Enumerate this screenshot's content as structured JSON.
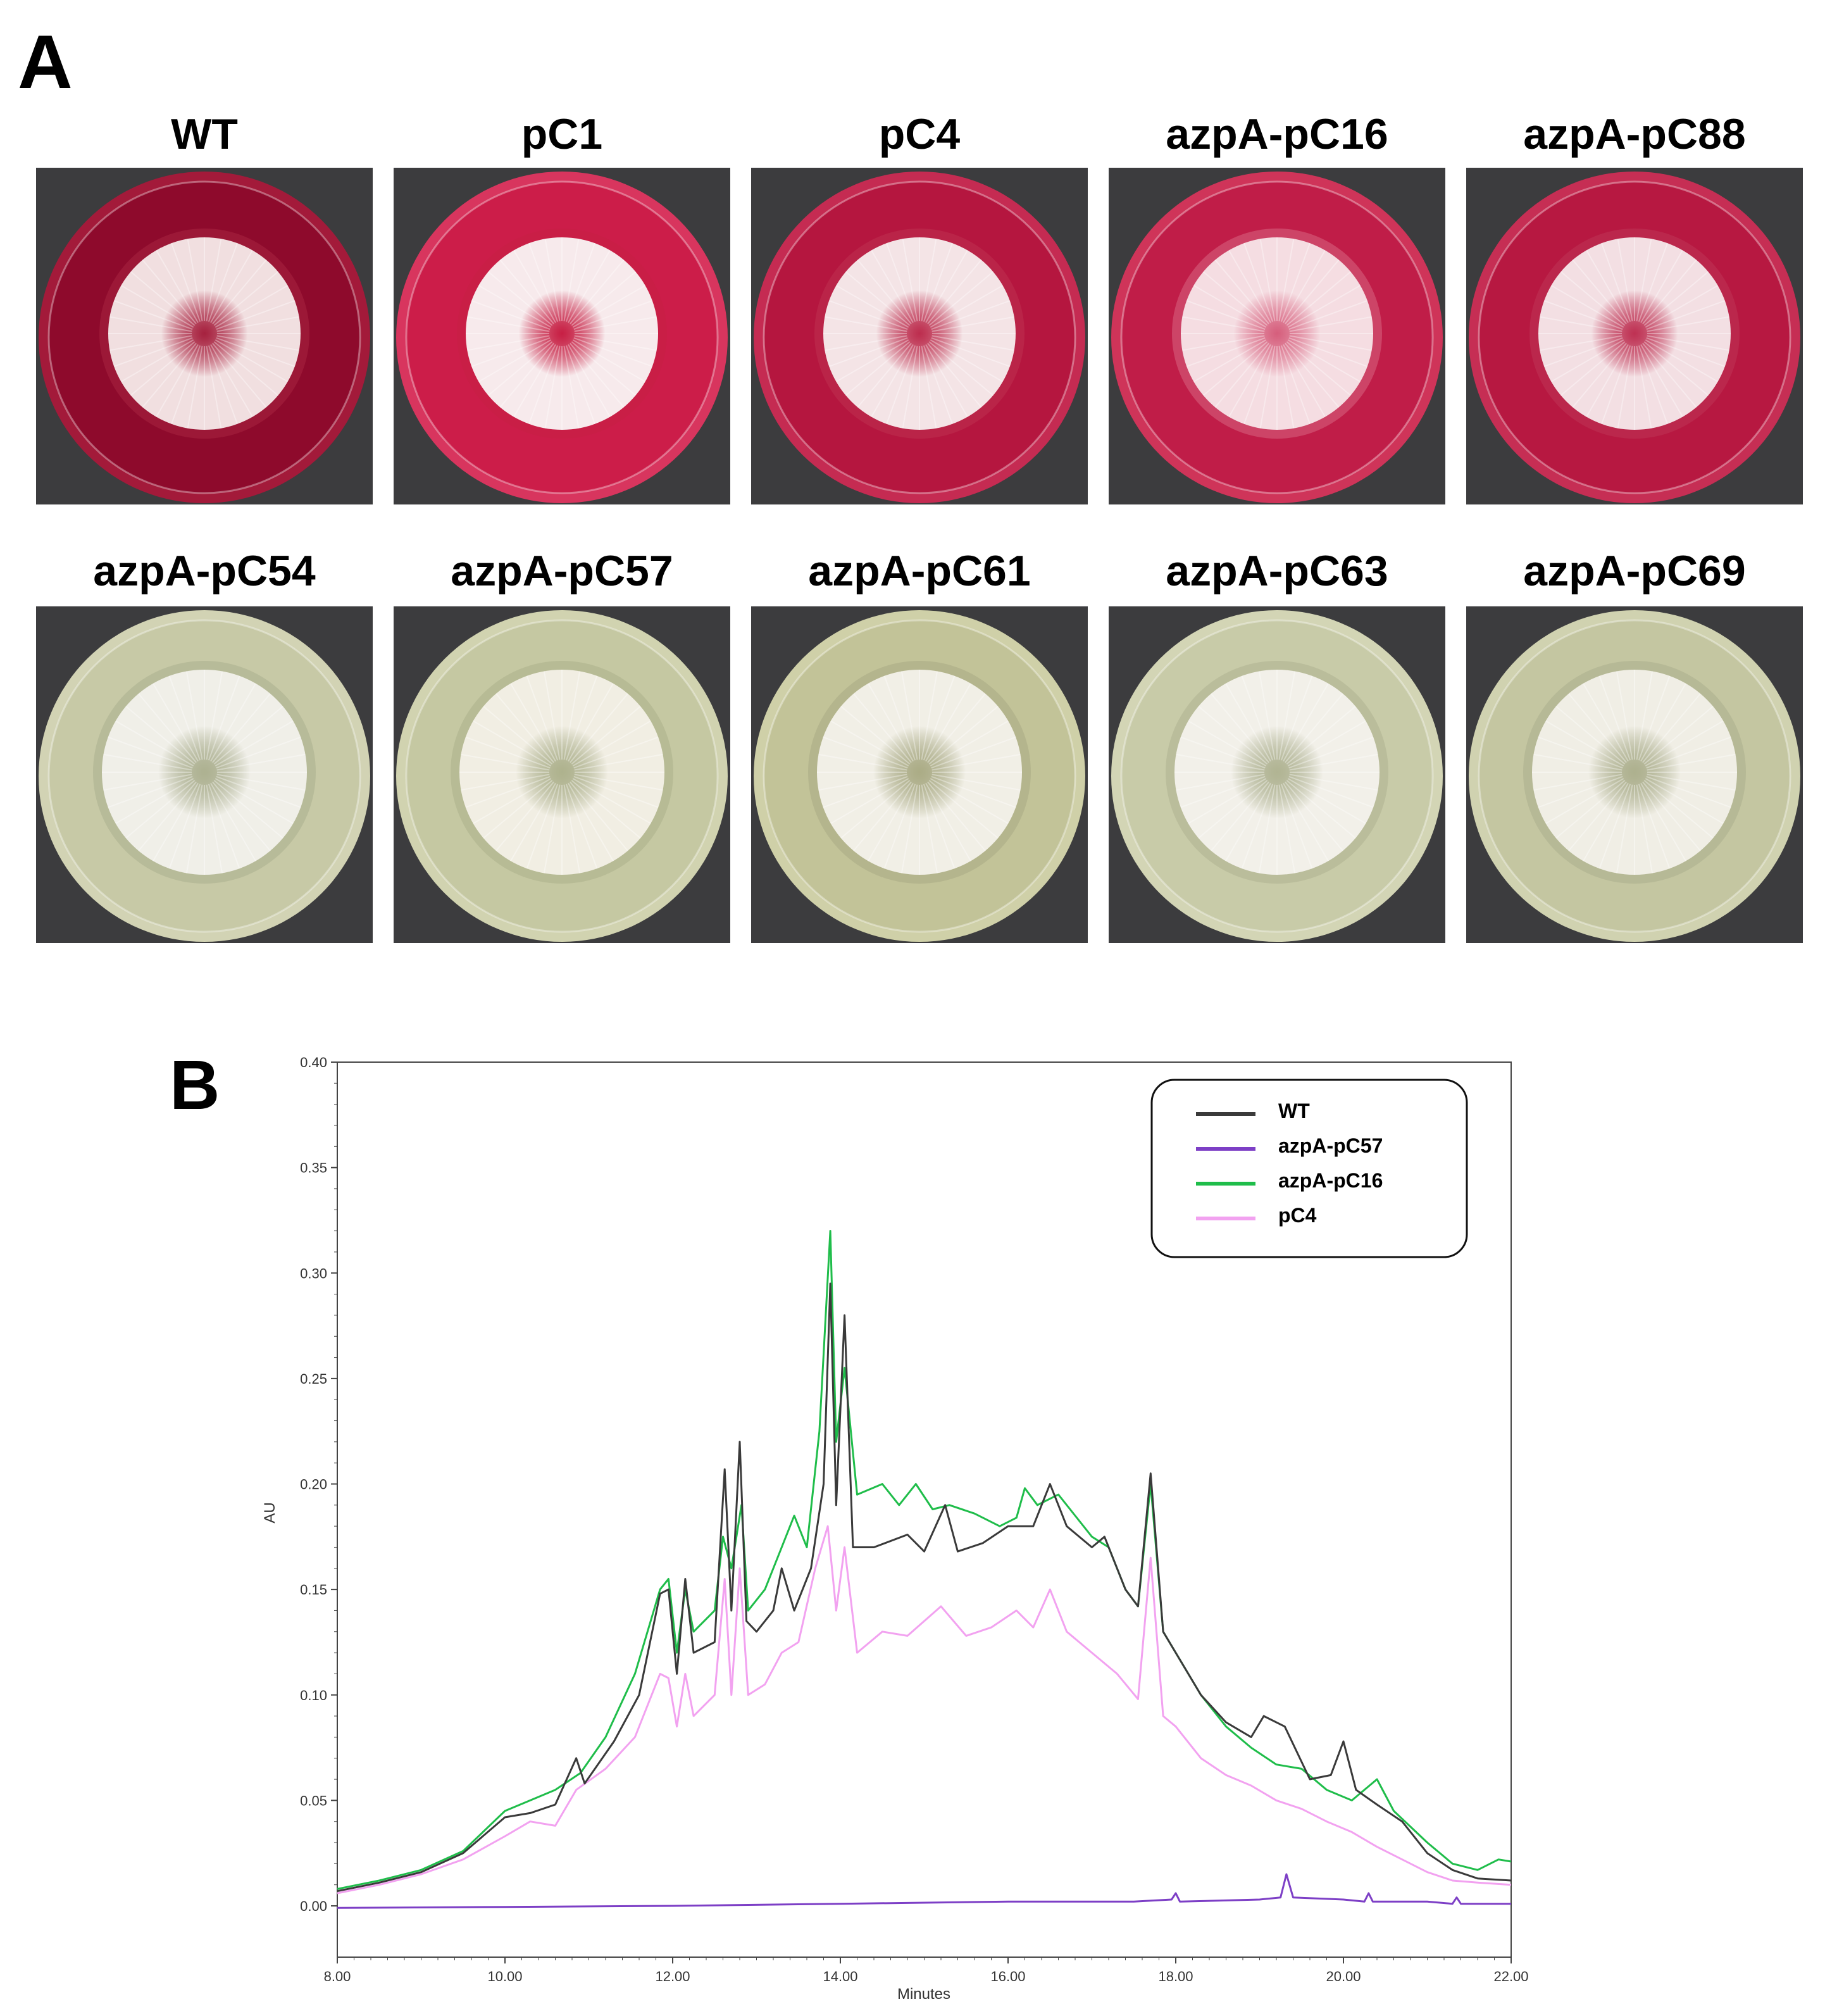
{
  "panel_a": {
    "letter": "A",
    "plates": [
      {
        "label": "WT",
        "medium": "red",
        "agar": "#8e0a2c",
        "rim": "#a31a3a",
        "colony": "#f1dfe0",
        "tint": "#b8334e"
      },
      {
        "label": "pC1",
        "medium": "red",
        "agar": "#cc1d49",
        "rim": "#d8355e",
        "colony": "#f7eaec",
        "tint": "#c42242"
      },
      {
        "label": "pC4",
        "medium": "red",
        "agar": "#b5163f",
        "rim": "#c52b52",
        "colony": "#f4e4e6",
        "tint": "#c23f5a"
      },
      {
        "label": "azpA-pC16",
        "medium": "red",
        "agar": "#c01d48",
        "rim": "#cf3459",
        "colony": "#f5dde2",
        "tint": "#e58ea3"
      },
      {
        "label": "azpA-pC88",
        "medium": "red",
        "agar": "#b71841",
        "rim": "#c62e54",
        "colony": "#f3dfe3",
        "tint": "#c44460"
      },
      {
        "label": "azpA-pC54",
        "medium": "yellow",
        "agar": "#c7c9a6",
        "rim": "#d2d3b4",
        "colony": "#f0efe8",
        "tint": "#9ca082"
      },
      {
        "label": "azpA-pC57",
        "medium": "yellow",
        "agar": "#c5c8a2",
        "rim": "#d1d3b0",
        "colony": "#f1eee3",
        "tint": "#9ea27f"
      },
      {
        "label": "azpA-pC61",
        "medium": "yellow",
        "agar": "#c2c398",
        "rim": "#cfd0a8",
        "colony": "#f1efe6",
        "tint": "#9b9c78"
      },
      {
        "label": "azpA-pC63",
        "medium": "yellow",
        "agar": "#c8cba8",
        "rim": "#d3d5b5",
        "colony": "#f2f0e9",
        "tint": "#a0a484"
      },
      {
        "label": "azpA-pC69",
        "medium": "yellow",
        "agar": "#c4c6a1",
        "rim": "#d0d2b0",
        "colony": "#f0eee5",
        "tint": "#9ea180"
      }
    ]
  },
  "panel_b": {
    "letter": "B",
    "legend": [
      {
        "label": "WT",
        "color": "#3a3a3a"
      },
      {
        "label": "azpA-pC57",
        "color": "#7d3fc6"
      },
      {
        "label": "azpA-pC16",
        "color": "#1fbd4a"
      },
      {
        "label": "pC4",
        "color": "#f2a2f0"
      }
    ]
  },
  "chart_data": {
    "type": "line",
    "title": "",
    "xlabel": "Minutes",
    "ylabel": "AU",
    "xlim": [
      8.0,
      22.0
    ],
    "ylim": [
      -0.01,
      0.4
    ],
    "xticks": [
      "8.00",
      "10.00",
      "12.00",
      "14.00",
      "16.00",
      "18.00",
      "20.00",
      "22.00"
    ],
    "yticks": [
      "0.00",
      "0.05",
      "0.10",
      "0.15",
      "0.20",
      "0.25",
      "0.30",
      "0.35",
      "0.40"
    ],
    "series": [
      {
        "name": "WT",
        "color": "#3a3a3a",
        "points": [
          [
            8.0,
            0.007
          ],
          [
            8.5,
            0.011
          ],
          [
            9.0,
            0.016
          ],
          [
            9.5,
            0.025
          ],
          [
            10.0,
            0.042
          ],
          [
            10.3,
            0.044
          ],
          [
            10.6,
            0.048
          ],
          [
            10.85,
            0.07
          ],
          [
            10.95,
            0.058
          ],
          [
            11.3,
            0.078
          ],
          [
            11.6,
            0.1
          ],
          [
            11.85,
            0.148
          ],
          [
            11.95,
            0.15
          ],
          [
            12.05,
            0.11
          ],
          [
            12.15,
            0.155
          ],
          [
            12.25,
            0.12
          ],
          [
            12.5,
            0.125
          ],
          [
            12.62,
            0.207
          ],
          [
            12.7,
            0.14
          ],
          [
            12.8,
            0.22
          ],
          [
            12.88,
            0.135
          ],
          [
            13.0,
            0.13
          ],
          [
            13.2,
            0.14
          ],
          [
            13.3,
            0.16
          ],
          [
            13.45,
            0.14
          ],
          [
            13.65,
            0.16
          ],
          [
            13.8,
            0.2
          ],
          [
            13.88,
            0.295
          ],
          [
            13.95,
            0.19
          ],
          [
            14.05,
            0.28
          ],
          [
            14.15,
            0.17
          ],
          [
            14.4,
            0.17
          ],
          [
            14.8,
            0.176
          ],
          [
            15.0,
            0.168
          ],
          [
            15.25,
            0.19
          ],
          [
            15.4,
            0.168
          ],
          [
            15.7,
            0.172
          ],
          [
            16.0,
            0.18
          ],
          [
            16.3,
            0.18
          ],
          [
            16.5,
            0.2
          ],
          [
            16.7,
            0.18
          ],
          [
            17.0,
            0.17
          ],
          [
            17.15,
            0.175
          ],
          [
            17.4,
            0.15
          ],
          [
            17.55,
            0.142
          ],
          [
            17.7,
            0.205
          ],
          [
            17.85,
            0.13
          ],
          [
            18.0,
            0.12
          ],
          [
            18.3,
            0.1
          ],
          [
            18.6,
            0.087
          ],
          [
            18.9,
            0.08
          ],
          [
            19.05,
            0.09
          ],
          [
            19.3,
            0.085
          ],
          [
            19.6,
            0.06
          ],
          [
            19.85,
            0.062
          ],
          [
            20.0,
            0.078
          ],
          [
            20.15,
            0.055
          ],
          [
            20.4,
            0.048
          ],
          [
            20.7,
            0.04
          ],
          [
            21.0,
            0.025
          ],
          [
            21.3,
            0.017
          ],
          [
            21.6,
            0.013
          ],
          [
            22.0,
            0.012
          ]
        ]
      },
      {
        "name": "azpA-pC57",
        "color": "#7d3fc6",
        "points": [
          [
            8.0,
            -0.001
          ],
          [
            10.0,
            -0.0005
          ],
          [
            12.0,
            0.0
          ],
          [
            14.0,
            0.001
          ],
          [
            16.0,
            0.002
          ],
          [
            17.5,
            0.002
          ],
          [
            17.95,
            0.003
          ],
          [
            18.0,
            0.006
          ],
          [
            18.05,
            0.002
          ],
          [
            19.0,
            0.003
          ],
          [
            19.25,
            0.004
          ],
          [
            19.32,
            0.015
          ],
          [
            19.4,
            0.004
          ],
          [
            20.0,
            0.003
          ],
          [
            20.25,
            0.002
          ],
          [
            20.3,
            0.006
          ],
          [
            20.35,
            0.002
          ],
          [
            21.0,
            0.002
          ],
          [
            21.3,
            0.001
          ],
          [
            21.35,
            0.004
          ],
          [
            21.4,
            0.001
          ],
          [
            22.0,
            0.001
          ]
        ]
      },
      {
        "name": "azpA-pC16",
        "color": "#1fbd4a",
        "points": [
          [
            8.0,
            0.008
          ],
          [
            8.5,
            0.012
          ],
          [
            9.0,
            0.017
          ],
          [
            9.5,
            0.026
          ],
          [
            10.0,
            0.045
          ],
          [
            10.3,
            0.05
          ],
          [
            10.6,
            0.055
          ],
          [
            10.9,
            0.063
          ],
          [
            11.2,
            0.08
          ],
          [
            11.55,
            0.11
          ],
          [
            11.85,
            0.15
          ],
          [
            11.95,
            0.155
          ],
          [
            12.05,
            0.12
          ],
          [
            12.15,
            0.15
          ],
          [
            12.25,
            0.13
          ],
          [
            12.5,
            0.14
          ],
          [
            12.6,
            0.175
          ],
          [
            12.7,
            0.16
          ],
          [
            12.82,
            0.19
          ],
          [
            12.9,
            0.14
          ],
          [
            13.1,
            0.15
          ],
          [
            13.3,
            0.17
          ],
          [
            13.45,
            0.185
          ],
          [
            13.6,
            0.17
          ],
          [
            13.75,
            0.225
          ],
          [
            13.88,
            0.32
          ],
          [
            13.95,
            0.22
          ],
          [
            14.05,
            0.255
          ],
          [
            14.2,
            0.195
          ],
          [
            14.5,
            0.2
          ],
          [
            14.7,
            0.19
          ],
          [
            14.9,
            0.2
          ],
          [
            15.1,
            0.188
          ],
          [
            15.3,
            0.19
          ],
          [
            15.6,
            0.186
          ],
          [
            15.9,
            0.18
          ],
          [
            16.1,
            0.184
          ],
          [
            16.2,
            0.198
          ],
          [
            16.35,
            0.19
          ],
          [
            16.6,
            0.195
          ],
          [
            16.8,
            0.185
          ],
          [
            17.0,
            0.175
          ],
          [
            17.2,
            0.17
          ],
          [
            17.4,
            0.15
          ],
          [
            17.55,
            0.142
          ],
          [
            17.7,
            0.2
          ],
          [
            17.85,
            0.13
          ],
          [
            18.0,
            0.12
          ],
          [
            18.3,
            0.1
          ],
          [
            18.6,
            0.085
          ],
          [
            18.9,
            0.075
          ],
          [
            19.2,
            0.067
          ],
          [
            19.5,
            0.065
          ],
          [
            19.8,
            0.055
          ],
          [
            20.1,
            0.05
          ],
          [
            20.4,
            0.06
          ],
          [
            20.6,
            0.045
          ],
          [
            21.0,
            0.03
          ],
          [
            21.3,
            0.02
          ],
          [
            21.6,
            0.017
          ],
          [
            21.85,
            0.022
          ],
          [
            22.0,
            0.021
          ]
        ]
      },
      {
        "name": "pC4",
        "color": "#f2a2f0",
        "points": [
          [
            8.0,
            0.006
          ],
          [
            8.5,
            0.01
          ],
          [
            9.0,
            0.015
          ],
          [
            9.5,
            0.022
          ],
          [
            10.0,
            0.033
          ],
          [
            10.3,
            0.04
          ],
          [
            10.6,
            0.038
          ],
          [
            10.85,
            0.055
          ],
          [
            11.2,
            0.065
          ],
          [
            11.55,
            0.08
          ],
          [
            11.85,
            0.11
          ],
          [
            11.95,
            0.108
          ],
          [
            12.05,
            0.085
          ],
          [
            12.15,
            0.11
          ],
          [
            12.25,
            0.09
          ],
          [
            12.5,
            0.1
          ],
          [
            12.62,
            0.155
          ],
          [
            12.7,
            0.1
          ],
          [
            12.8,
            0.16
          ],
          [
            12.9,
            0.1
          ],
          [
            13.1,
            0.105
          ],
          [
            13.3,
            0.12
          ],
          [
            13.5,
            0.125
          ],
          [
            13.7,
            0.16
          ],
          [
            13.85,
            0.18
          ],
          [
            13.95,
            0.14
          ],
          [
            14.05,
            0.17
          ],
          [
            14.2,
            0.12
          ],
          [
            14.5,
            0.13
          ],
          [
            14.8,
            0.128
          ],
          [
            15.2,
            0.142
          ],
          [
            15.5,
            0.128
          ],
          [
            15.8,
            0.132
          ],
          [
            16.1,
            0.14
          ],
          [
            16.3,
            0.132
          ],
          [
            16.5,
            0.15
          ],
          [
            16.7,
            0.13
          ],
          [
            17.0,
            0.12
          ],
          [
            17.3,
            0.11
          ],
          [
            17.55,
            0.098
          ],
          [
            17.7,
            0.165
          ],
          [
            17.85,
            0.09
          ],
          [
            18.0,
            0.085
          ],
          [
            18.3,
            0.07
          ],
          [
            18.6,
            0.062
          ],
          [
            18.9,
            0.057
          ],
          [
            19.2,
            0.05
          ],
          [
            19.5,
            0.046
          ],
          [
            19.8,
            0.04
          ],
          [
            20.1,
            0.035
          ],
          [
            20.4,
            0.028
          ],
          [
            20.7,
            0.022
          ],
          [
            21.0,
            0.016
          ],
          [
            21.3,
            0.012
          ],
          [
            21.6,
            0.011
          ],
          [
            22.0,
            0.01
          ]
        ]
      }
    ]
  }
}
